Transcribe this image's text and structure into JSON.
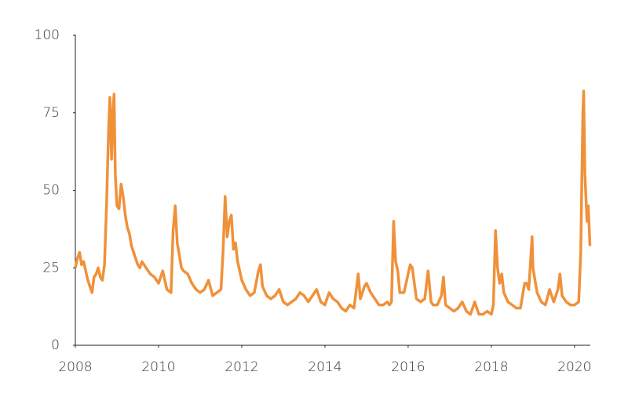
{
  "chart_data": {
    "type": "line",
    "color": "#f0913a",
    "x": [
      2008.0,
      2008.05,
      2008.1,
      2008.15,
      2008.2,
      2008.25,
      2008.3,
      2008.35,
      2008.4,
      2008.45,
      2008.5,
      2008.55,
      2008.6,
      2008.65,
      2008.7,
      2008.75,
      2008.8,
      2008.83,
      2008.87,
      2008.9,
      2008.93,
      2008.96,
      2009.0,
      2009.05,
      2009.1,
      2009.15,
      2009.2,
      2009.25,
      2009.3,
      2009.35,
      2009.4,
      2009.45,
      2009.5,
      2009.55,
      2009.6,
      2009.7,
      2009.8,
      2009.9,
      2010.0,
      2010.1,
      2010.2,
      2010.3,
      2010.35,
      2010.4,
      2010.45,
      2010.5,
      2010.55,
      2010.6,
      2010.7,
      2010.8,
      2010.9,
      2011.0,
      2011.1,
      2011.2,
      2011.3,
      2011.4,
      2011.5,
      2011.55,
      2011.6,
      2011.65,
      2011.7,
      2011.75,
      2011.8,
      2011.85,
      2011.9,
      2012.0,
      2012.1,
      2012.2,
      2012.3,
      2012.4,
      2012.45,
      2012.5,
      2012.6,
      2012.7,
      2012.8,
      2012.9,
      2013.0,
      2013.1,
      2013.2,
      2013.3,
      2013.4,
      2013.5,
      2013.6,
      2013.7,
      2013.8,
      2013.9,
      2014.0,
      2014.1,
      2014.2,
      2014.3,
      2014.4,
      2014.5,
      2014.6,
      2014.7,
      2014.8,
      2014.85,
      2014.95,
      2015.0,
      2015.1,
      2015.2,
      2015.3,
      2015.4,
      2015.5,
      2015.55,
      2015.6,
      2015.65,
      2015.7,
      2015.75,
      2015.8,
      2015.9,
      2016.0,
      2016.05,
      2016.1,
      2016.2,
      2016.3,
      2016.4,
      2016.48,
      2016.55,
      2016.6,
      2016.7,
      2016.8,
      2016.85,
      2016.9,
      2017.0,
      2017.1,
      2017.2,
      2017.3,
      2017.4,
      2017.5,
      2017.6,
      2017.7,
      2017.8,
      2017.9,
      2018.0,
      2018.05,
      2018.1,
      2018.15,
      2018.2,
      2018.25,
      2018.3,
      2018.4,
      2018.5,
      2018.6,
      2018.7,
      2018.8,
      2018.85,
      2018.9,
      2018.98,
      2019.0,
      2019.1,
      2019.2,
      2019.3,
      2019.4,
      2019.5,
      2019.6,
      2019.65,
      2019.7,
      2019.8,
      2019.9,
      2020.0,
      2020.1,
      2020.15,
      2020.2,
      2020.22,
      2020.25,
      2020.3,
      2020.33,
      2020.37
    ],
    "values": [
      25,
      28,
      30,
      26,
      27,
      24,
      21,
      19,
      17,
      22,
      23,
      25,
      22,
      21,
      26,
      45,
      70,
      80,
      60,
      75,
      81,
      55,
      45,
      44,
      52,
      48,
      42,
      38,
      36,
      32,
      30,
      28,
      26,
      25,
      27,
      25,
      23,
      22,
      20,
      24,
      18,
      17,
      37,
      45,
      33,
      29,
      25,
      24,
      23,
      20,
      18,
      17,
      18,
      21,
      16,
      17,
      18,
      30,
      48,
      35,
      40,
      42,
      31,
      33,
      27,
      21,
      18,
      16,
      17,
      24,
      26,
      19,
      16,
      15,
      16,
      18,
      14,
      13,
      14,
      15,
      17,
      16,
      14,
      16,
      18,
      14,
      13,
      17,
      15,
      14,
      12,
      11,
      13,
      12,
      23,
      15,
      19,
      20,
      17,
      15,
      13,
      13,
      14,
      13,
      14,
      40,
      27,
      24,
      17,
      17,
      23,
      26,
      25,
      15,
      14,
      15,
      24,
      14,
      13,
      13,
      16,
      22,
      13,
      12,
      11,
      12,
      14,
      11,
      10,
      14,
      10,
      10,
      11,
      10,
      13,
      37,
      25,
      20,
      23,
      17,
      14,
      13,
      12,
      12,
      20,
      20,
      18,
      35,
      25,
      17,
      14,
      13,
      18,
      14,
      18,
      23,
      16,
      14,
      13,
      13,
      14,
      30,
      75,
      82,
      55,
      40,
      45,
      32
    ],
    "xlim": [
      2008,
      2020.38
    ],
    "xticks": [
      2008,
      2010,
      2012,
      2014,
      2016,
      2018,
      2020
    ],
    "ylim": [
      0,
      100
    ],
    "yticks": [
      0,
      25,
      50,
      75,
      100
    ]
  }
}
